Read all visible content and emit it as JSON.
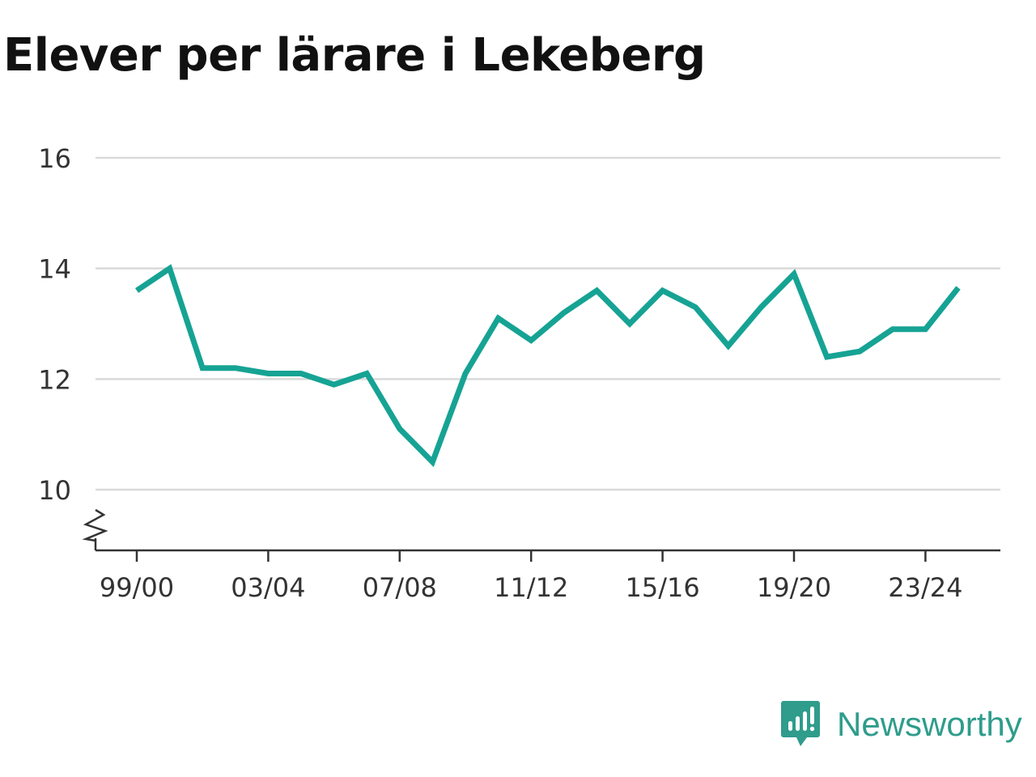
{
  "chart_data": {
    "type": "line",
    "title": "Elever per lärare i Lekeberg",
    "x": [
      "99/00",
      "00/01",
      "01/02",
      "02/03",
      "03/04",
      "04/05",
      "05/06",
      "06/07",
      "07/08",
      "08/09",
      "09/10",
      "10/11",
      "11/12",
      "12/13",
      "13/14",
      "14/15",
      "15/16",
      "16/17",
      "17/18",
      "18/19",
      "19/20",
      "20/21",
      "21/22",
      "22/23",
      "23/24",
      "24/25"
    ],
    "series": [
      {
        "values": [
          13.6,
          14.0,
          12.2,
          12.2,
          12.1,
          12.1,
          11.9,
          12.1,
          11.1,
          10.5,
          12.1,
          13.1,
          12.7,
          13.2,
          13.6,
          13.0,
          13.6,
          13.3,
          12.6,
          13.3,
          13.9,
          12.4,
          12.5,
          12.9,
          12.9,
          13.65
        ],
        "color": "#16a394"
      }
    ],
    "ylim": [
      10,
      16
    ],
    "yticks": [
      10,
      12,
      14,
      16
    ],
    "xticks": [
      "99/00",
      "03/04",
      "07/08",
      "11/12",
      "15/16",
      "19/20",
      "23/24"
    ],
    "grid": true,
    "axis_break": true,
    "xlabel": "",
    "ylabel": ""
  },
  "brand": {
    "name": "Newsworthy",
    "icon": "newsworthy-logo-icon",
    "color": "#2f9c8c"
  }
}
